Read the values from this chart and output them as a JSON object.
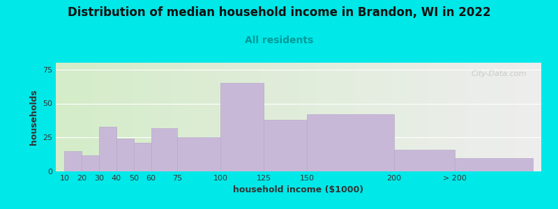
{
  "title": "Distribution of median household income in Brandon, WI in 2022",
  "subtitle": "All residents",
  "xlabel": "household income ($1000)",
  "ylabel": "households",
  "bar_labels": [
    "10",
    "20",
    "30",
    "40",
    "50",
    "60",
    "75",
    "100",
    "125",
    "150",
    "200",
    "> 200"
  ],
  "bar_heights": [
    15,
    12,
    33,
    24,
    21,
    32,
    25,
    65,
    38,
    42,
    16,
    10
  ],
  "bar_color": "#c8b8d8",
  "bar_edge_color": "#b8a8c8",
  "ylim": [
    0,
    80
  ],
  "yticks": [
    0,
    25,
    50,
    75
  ],
  "background_color": "#00e8e8",
  "plot_bg_left": "#d4ecc8",
  "plot_bg_right": "#eeeeee",
  "title_fontsize": 12,
  "subtitle_fontsize": 10,
  "subtitle_color": "#009999",
  "axis_label_fontsize": 9,
  "watermark": "City-Data.com",
  "x_positions": [
    10,
    20,
    30,
    40,
    50,
    60,
    75,
    100,
    125,
    150,
    200,
    235
  ],
  "bar_widths": [
    10,
    10,
    10,
    10,
    10,
    15,
    25,
    25,
    25,
    50,
    35,
    45
  ],
  "xlim_left": 5,
  "xlim_right": 285
}
